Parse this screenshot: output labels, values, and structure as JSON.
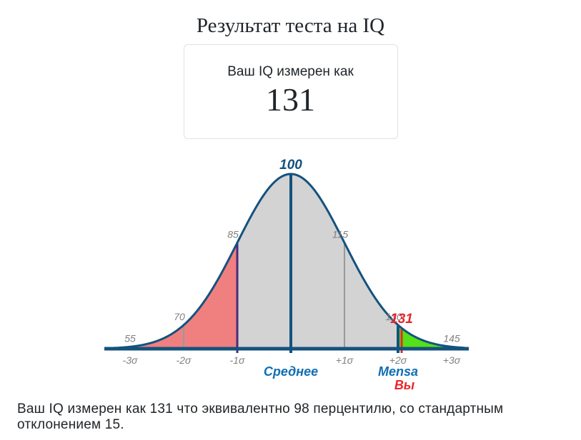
{
  "header": {
    "title": "Результат теста на IQ"
  },
  "result_card": {
    "label": "Ваш IQ измерен как",
    "value": "131"
  },
  "footer": {
    "summary": "Ваш IQ измерен как 131 что эквивалентно 98 перцентилю, со стандартным отклонением 15."
  },
  "chart_data": {
    "type": "area",
    "description": "Normal (bell curve) distribution of IQ scores with user result marked",
    "mean": 100,
    "sd": 15,
    "user_score": 131,
    "percentile": 98,
    "x_range_iq": [
      48.8,
      148.6
    ],
    "grid": false,
    "colors": {
      "curve": "#14527E",
      "axis": "#14527E",
      "label_gray": "#808080",
      "accent_blue": "#0F6EB4",
      "accent_red": "#E8262A"
    },
    "regions": [
      {
        "name": "left-tail-below-85",
        "from_iq": null,
        "to_iq": 85,
        "color": "#F08080"
      },
      {
        "name": "middle-85-130",
        "from_iq": 85,
        "to_iq": 130,
        "color": "#D3D3D3"
      },
      {
        "name": "right-tail-mensa-above-130",
        "from_iq": 130,
        "to_iq": null,
        "color": "#55E018"
      }
    ],
    "markers": [
      {
        "iq": 55,
        "label": "55",
        "line": false,
        "label_color": "#808080"
      },
      {
        "iq": 70,
        "label": "70",
        "line": true,
        "line_color": "#999999",
        "line_width": 2,
        "tick": false,
        "label_color": "#808080"
      },
      {
        "iq": 85,
        "label": "85",
        "line": true,
        "line_color": "#4B2A7D",
        "line_width": 3,
        "tick": true,
        "label_color": "#808080"
      },
      {
        "iq": 100,
        "label": "100",
        "line": true,
        "line_color": "#14527E",
        "line_width": 4,
        "tick": true,
        "label_color": "#14527E",
        "emphasis": true
      },
      {
        "iq": 115,
        "label": "115",
        "line": true,
        "line_color": "#999999",
        "line_width": 2,
        "tick": false,
        "label_color": "#808080"
      },
      {
        "iq": 130,
        "label": "130",
        "line": true,
        "line_color": "#14527E",
        "line_width": 4,
        "tick": true,
        "label_color": "#808080"
      },
      {
        "iq": 131,
        "label": "131",
        "line": true,
        "line_color": "#E8262A",
        "line_width": 3,
        "tick": true,
        "label_color": "#E8262A",
        "emphasis": true
      },
      {
        "iq": 145,
        "label": "145",
        "line": false,
        "label_color": "#808080"
      }
    ],
    "axis_ticks": [
      {
        "sigma": -3,
        "label": "-3σ"
      },
      {
        "sigma": -2,
        "label": "-2σ"
      },
      {
        "sigma": -1,
        "label": "-1σ"
      },
      {
        "sigma": 1,
        "label": "+1σ"
      },
      {
        "sigma": 2,
        "label": "+2σ"
      },
      {
        "sigma": 3,
        "label": "+3σ"
      }
    ],
    "below_axis_labels": [
      {
        "iq": 100,
        "text": "Среднее",
        "color": "#0F6EB4",
        "row": 1
      },
      {
        "iq": 130,
        "text": "Mensa",
        "color": "#0F6EB4",
        "row": 1
      },
      {
        "iq": 131,
        "text": "Вы",
        "color": "#E8262A",
        "row": 2
      }
    ]
  }
}
